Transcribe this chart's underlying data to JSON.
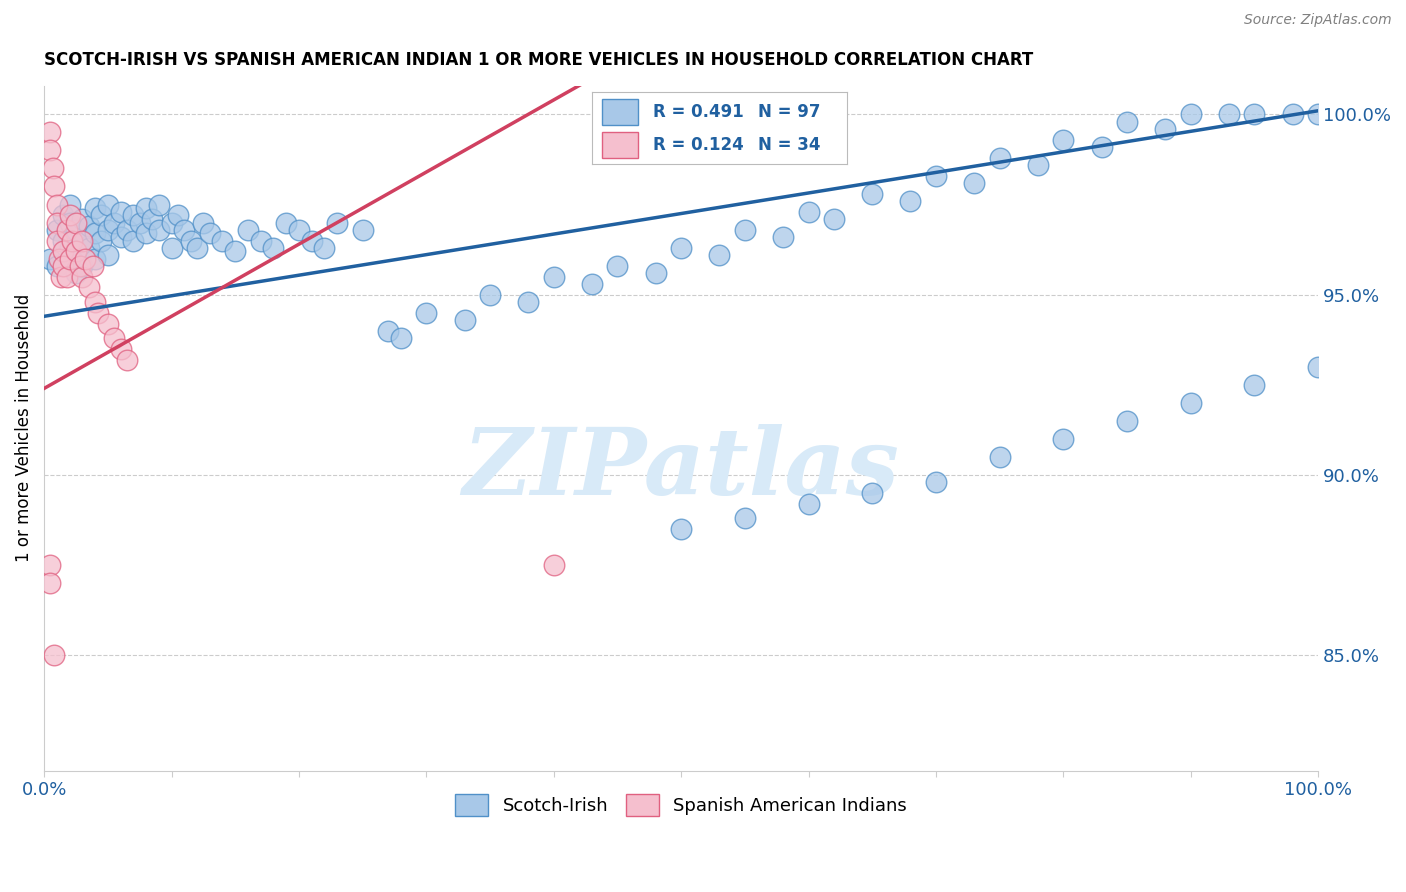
{
  "title": "SCOTCH-IRISH VS SPANISH AMERICAN INDIAN 1 OR MORE VEHICLES IN HOUSEHOLD CORRELATION CHART",
  "source": "Source: ZipAtlas.com",
  "ylabel": "1 or more Vehicles in Household",
  "xlim": [
    0.0,
    1.0
  ],
  "ylim": [
    0.818,
    1.008
  ],
  "blue_R": 0.491,
  "blue_N": 97,
  "pink_R": 0.124,
  "pink_N": 34,
  "right_yticks": [
    0.85,
    0.9,
    0.95,
    1.0
  ],
  "right_yticklabels": [
    "85.0%",
    "90.0%",
    "95.0%",
    "100.0%"
  ],
  "legend_labels": [
    "Scotch-Irish",
    "Spanish American Indians"
  ],
  "blue_color": "#a8c8e8",
  "pink_color": "#f5bfce",
  "blue_edge_color": "#5090c8",
  "pink_edge_color": "#e06080",
  "blue_line_color": "#2060a0",
  "pink_line_color": "#d04060",
  "dashed_line_color": "#d0d0d0",
  "watermark_color": "#d8eaf8",
  "blue_scatter_x": [
    0.005,
    0.01,
    0.01,
    0.015,
    0.015,
    0.02,
    0.02,
    0.02,
    0.025,
    0.025,
    0.025,
    0.03,
    0.03,
    0.03,
    0.035,
    0.035,
    0.04,
    0.04,
    0.04,
    0.045,
    0.045,
    0.05,
    0.05,
    0.05,
    0.055,
    0.06,
    0.06,
    0.065,
    0.07,
    0.07,
    0.075,
    0.08,
    0.08,
    0.085,
    0.09,
    0.09,
    0.1,
    0.1,
    0.105,
    0.11,
    0.115,
    0.12,
    0.125,
    0.13,
    0.14,
    0.15,
    0.16,
    0.17,
    0.18,
    0.19,
    0.2,
    0.21,
    0.22,
    0.23,
    0.25,
    0.27,
    0.28,
    0.3,
    0.33,
    0.35,
    0.38,
    0.4,
    0.43,
    0.45,
    0.48,
    0.5,
    0.53,
    0.55,
    0.58,
    0.6,
    0.62,
    0.65,
    0.68,
    0.7,
    0.73,
    0.75,
    0.78,
    0.8,
    0.83,
    0.85,
    0.88,
    0.9,
    0.93,
    0.95,
    0.98,
    1.0,
    0.5,
    0.55,
    0.6,
    0.65,
    0.7,
    0.75,
    0.8,
    0.85,
    0.9,
    0.95,
    1.0
  ],
  "blue_scatter_y": [
    0.96,
    0.968,
    0.958,
    0.972,
    0.965,
    0.975,
    0.97,
    0.963,
    0.968,
    0.962,
    0.956,
    0.971,
    0.965,
    0.958,
    0.969,
    0.963,
    0.974,
    0.967,
    0.96,
    0.972,
    0.965,
    0.975,
    0.968,
    0.961,
    0.97,
    0.973,
    0.966,
    0.968,
    0.972,
    0.965,
    0.97,
    0.974,
    0.967,
    0.971,
    0.975,
    0.968,
    0.97,
    0.963,
    0.972,
    0.968,
    0.965,
    0.963,
    0.97,
    0.967,
    0.965,
    0.962,
    0.968,
    0.965,
    0.963,
    0.97,
    0.968,
    0.965,
    0.963,
    0.97,
    0.968,
    0.94,
    0.938,
    0.945,
    0.943,
    0.95,
    0.948,
    0.955,
    0.953,
    0.958,
    0.956,
    0.963,
    0.961,
    0.968,
    0.966,
    0.973,
    0.971,
    0.978,
    0.976,
    0.983,
    0.981,
    0.988,
    0.986,
    0.993,
    0.991,
    0.998,
    0.996,
    1.0,
    1.0,
    1.0,
    1.0,
    1.0,
    0.885,
    0.888,
    0.892,
    0.895,
    0.898,
    0.905,
    0.91,
    0.915,
    0.92,
    0.925,
    0.93
  ],
  "pink_scatter_x": [
    0.005,
    0.005,
    0.007,
    0.008,
    0.01,
    0.01,
    0.01,
    0.012,
    0.013,
    0.015,
    0.015,
    0.018,
    0.018,
    0.02,
    0.02,
    0.022,
    0.025,
    0.025,
    0.028,
    0.03,
    0.03,
    0.032,
    0.035,
    0.038,
    0.04,
    0.042,
    0.05,
    0.055,
    0.06,
    0.065,
    0.005,
    0.005,
    0.4,
    0.008
  ],
  "pink_scatter_y": [
    0.995,
    0.99,
    0.985,
    0.98,
    0.975,
    0.97,
    0.965,
    0.96,
    0.955,
    0.962,
    0.958,
    0.968,
    0.955,
    0.972,
    0.96,
    0.965,
    0.97,
    0.962,
    0.958,
    0.965,
    0.955,
    0.96,
    0.952,
    0.958,
    0.948,
    0.945,
    0.942,
    0.938,
    0.935,
    0.932,
    0.875,
    0.87,
    0.875,
    0.85
  ]
}
